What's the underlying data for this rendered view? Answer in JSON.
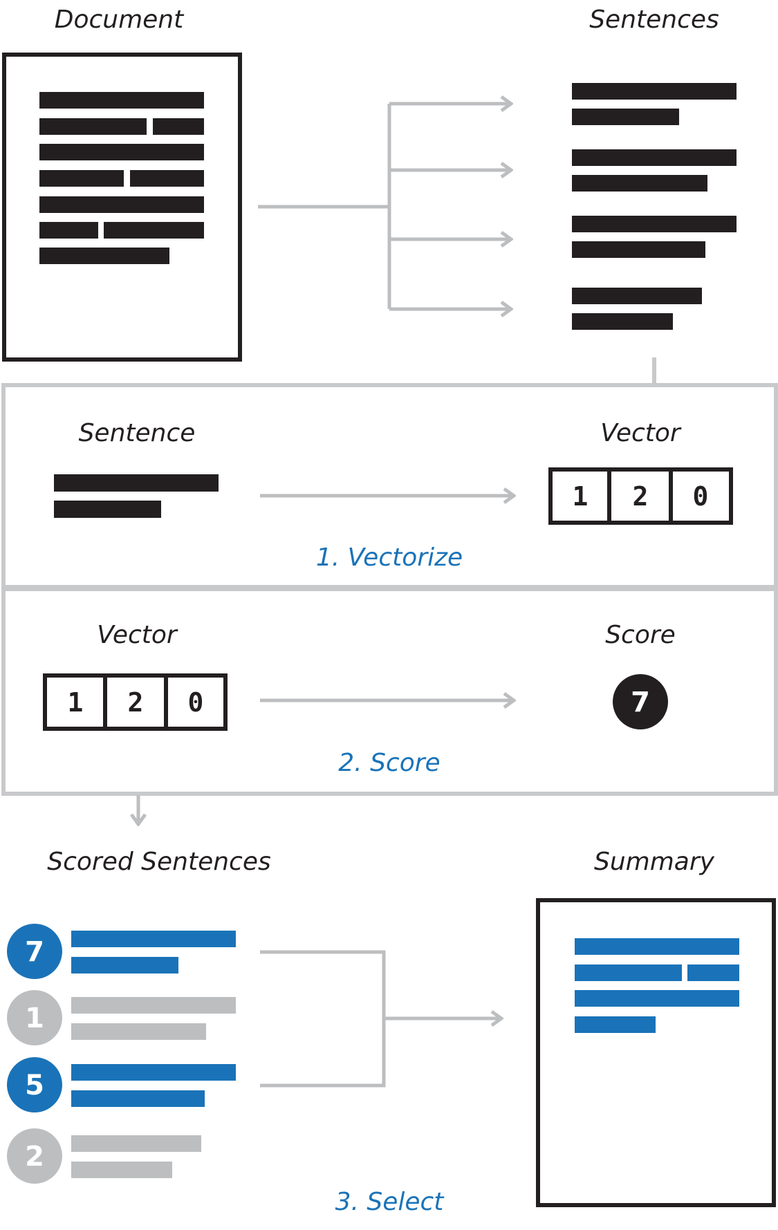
{
  "labels": {
    "document": "Document",
    "sentences": "Sentences",
    "sentence": "Sentence",
    "vector_top": "Vector",
    "vector_mid": "Vector",
    "score": "Score",
    "scored_sentences": "Scored Sentences",
    "summary": "Summary"
  },
  "steps": {
    "vectorize": "1. Vectorize",
    "score": "2. Score",
    "select": "3. Select"
  },
  "vector": [
    "1",
    "2",
    "0"
  ],
  "score_value": "7",
  "scored": [
    {
      "score": "7",
      "selected": true
    },
    {
      "score": "1",
      "selected": false
    },
    {
      "score": "5",
      "selected": true
    },
    {
      "score": "2",
      "selected": false
    }
  ],
  "colors": {
    "ink": "#231f20",
    "blue": "#1a73b8",
    "gray": "#bcbec0",
    "frame": "#c8c9cb"
  }
}
